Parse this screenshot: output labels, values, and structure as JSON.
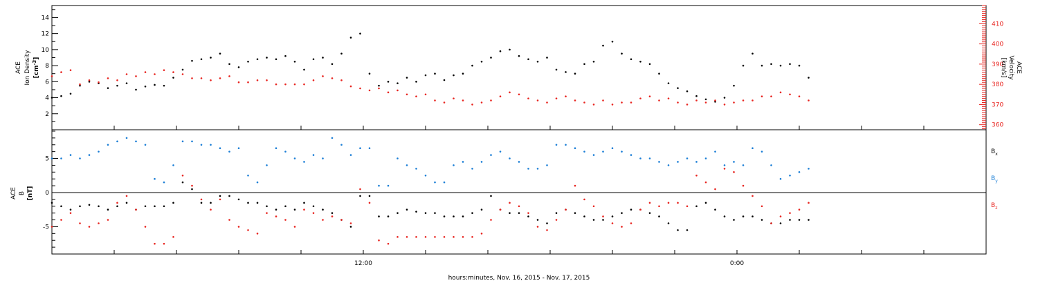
{
  "chart_data": [
    {
      "type": "scatter",
      "ylabel_left": [
        "ACE",
        "Ion Density",
        "[cm",
        "-3",
        "]"
      ],
      "ylabel_right": [
        "ACE",
        "Velocity",
        "[km/s]"
      ],
      "yticks_left": [
        2,
        4,
        6,
        8,
        10,
        12,
        14
      ],
      "ylim_left": [
        0,
        15.5
      ],
      "yticks_right": [
        360,
        370,
        380,
        390,
        400,
        410
      ],
      "ylim_right": [
        357.5,
        419
      ],
      "xlim_hours": [
        2,
        32
      ],
      "series": [
        {
          "name": "density",
          "axis": "left",
          "color": "#000000",
          "x_hours": [
            2.0,
            2.3,
            2.6,
            2.9,
            3.2,
            3.5,
            3.8,
            4.1,
            4.4,
            4.7,
            5.0,
            5.3,
            5.6,
            5.9,
            6.2,
            6.5,
            6.8,
            7.1,
            7.4,
            7.7,
            8.0,
            8.3,
            8.6,
            8.9,
            9.2,
            9.5,
            9.8,
            10.1,
            10.4,
            10.7,
            11.0,
            11.3,
            11.6,
            11.9,
            12.2,
            12.5,
            12.8,
            13.1,
            13.4,
            13.7,
            14.0,
            14.3,
            14.6,
            14.9,
            15.2,
            15.5,
            15.8,
            16.1,
            16.4,
            16.7,
            17.0,
            17.3,
            17.6,
            17.9,
            18.2,
            18.5,
            18.8,
            19.1,
            19.4,
            19.7,
            20.0,
            20.3,
            20.6,
            20.9,
            21.2,
            21.5,
            21.8,
            22.1,
            22.4,
            22.7,
            23.0,
            23.3,
            23.6,
            23.9,
            24.2,
            24.5,
            24.8,
            25.1,
            25.4,
            25.7,
            26.0,
            26.3
          ],
          "values": [
            4.0,
            4.2,
            4.5,
            5.5,
            6.0,
            5.8,
            5.2,
            5.5,
            5.8,
            5.0,
            5.4,
            5.6,
            5.5,
            6.5,
            7.5,
            8.6,
            8.8,
            9.0,
            9.5,
            8.2,
            7.8,
            8.5,
            8.8,
            9.0,
            8.8,
            9.2,
            8.5,
            7.5,
            8.8,
            9.0,
            8.2,
            9.5,
            11.5,
            12.0,
            7.0,
            5.5,
            6.0,
            5.8,
            6.5,
            6.0,
            6.8,
            7.0,
            6.2,
            6.8,
            7.0,
            8.0,
            8.5,
            9.0,
            9.8,
            10.0,
            9.2,
            8.8,
            8.5,
            9.0,
            7.5,
            7.2,
            7.0,
            8.2,
            8.5,
            10.5,
            11.0,
            9.5,
            8.8,
            8.5,
            8.2,
            7.0,
            5.8,
            5.2,
            4.8,
            4.2,
            3.8,
            3.5,
            4.0,
            5.5,
            8.0,
            9.5,
            8.0,
            8.2,
            8.0,
            8.2,
            8.0,
            6.5
          ]
        },
        {
          "name": "velocity",
          "axis": "right",
          "color": "#e8241f",
          "x_hours": [
            2.0,
            2.3,
            2.6,
            2.9,
            3.2,
            3.5,
            3.8,
            4.1,
            4.4,
            4.7,
            5.0,
            5.3,
            5.6,
            5.9,
            6.2,
            6.5,
            6.8,
            7.1,
            7.4,
            7.7,
            8.0,
            8.3,
            8.6,
            8.9,
            9.2,
            9.5,
            9.8,
            10.1,
            10.4,
            10.7,
            11.0,
            11.3,
            11.6,
            11.9,
            12.2,
            12.5,
            12.8,
            13.1,
            13.4,
            13.7,
            14.0,
            14.3,
            14.6,
            14.9,
            15.2,
            15.5,
            15.8,
            16.1,
            16.4,
            16.7,
            17.0,
            17.3,
            17.6,
            17.9,
            18.2,
            18.5,
            18.8,
            19.1,
            19.4,
            19.7,
            20.0,
            20.3,
            20.6,
            20.9,
            21.2,
            21.5,
            21.8,
            22.1,
            22.4,
            22.7,
            23.0,
            23.3,
            23.6,
            23.9,
            24.2,
            24.5,
            24.8,
            25.1,
            25.4,
            25.7,
            26.0,
            26.3
          ],
          "values": [
            384,
            386,
            387,
            380,
            382,
            381,
            383,
            382,
            385,
            384,
            386,
            385,
            387,
            386,
            385,
            383,
            383,
            382,
            383,
            384,
            381,
            381,
            382,
            382,
            380,
            380,
            380,
            380,
            382,
            384,
            383,
            382,
            379,
            378,
            377,
            378,
            376,
            377,
            375,
            374,
            375,
            372,
            371,
            373,
            372,
            370,
            371,
            372,
            374,
            376,
            375,
            373,
            372,
            371,
            373,
            374,
            372,
            371,
            370,
            372,
            370,
            371,
            371,
            373,
            374,
            372,
            373,
            371,
            370,
            372,
            371,
            372,
            370,
            371,
            372,
            372,
            374,
            374,
            376,
            375,
            374,
            372
          ]
        }
      ]
    },
    {
      "type": "scatter",
      "ylabel_left": [
        "ACE",
        "B",
        "[nT]"
      ],
      "yticks_left": [
        -5,
        0,
        5
      ],
      "ylim_left": [
        -9,
        9.2
      ],
      "xlim_hours": [
        2,
        32
      ],
      "xtick_hours": [
        4,
        6,
        8,
        10,
        12,
        14,
        16,
        18,
        20,
        22,
        24,
        26,
        28,
        30
      ],
      "xtick_labels": [
        {
          "hour": 12,
          "label": "12:00"
        },
        {
          "hour": 24,
          "label": "0:00"
        }
      ],
      "xlabel": "hours:minutes, Nov. 16, 2015 - Nov. 17, 2015",
      "legend": [
        {
          "name": "B",
          "sub": "x",
          "color": "#000000"
        },
        {
          "name": "B",
          "sub": "y",
          "color": "#1a7ed6"
        },
        {
          "name": "B",
          "sub": "z",
          "color": "#e8241f"
        }
      ],
      "series": [
        {
          "name": "Bx",
          "color": "#000000",
          "x_hours": [
            2.0,
            2.3,
            2.6,
            2.9,
            3.2,
            3.5,
            3.8,
            4.1,
            4.4,
            4.7,
            5.0,
            5.3,
            5.6,
            5.9,
            6.2,
            6.5,
            6.8,
            7.1,
            7.4,
            7.7,
            8.0,
            8.3,
            8.6,
            8.9,
            9.2,
            9.5,
            9.8,
            10.1,
            10.4,
            10.7,
            11.0,
            11.3,
            11.6,
            11.9,
            12.2,
            12.5,
            12.8,
            13.1,
            13.4,
            13.7,
            14.0,
            14.3,
            14.6,
            14.9,
            15.2,
            15.5,
            15.8,
            16.1,
            16.4,
            16.7,
            17.0,
            17.3,
            17.6,
            17.9,
            18.2,
            18.5,
            18.8,
            19.1,
            19.4,
            19.7,
            20.0,
            20.3,
            20.6,
            20.9,
            21.2,
            21.5,
            21.8,
            22.1,
            22.4,
            22.7,
            23.0,
            23.3,
            23.6,
            23.9,
            24.2,
            24.5,
            24.8,
            25.1,
            25.4,
            25.7,
            26.0,
            26.3
          ],
          "values": [
            -1.5,
            -2.0,
            -2.5,
            -2.0,
            -1.8,
            -2.0,
            -2.5,
            -2.0,
            -1.5,
            -2.5,
            -2.0,
            -2.0,
            -2.0,
            -1.5,
            1.5,
            0.5,
            -1.5,
            -1.5,
            -0.5,
            -0.5,
            -1.0,
            -1.5,
            -1.5,
            -2.0,
            -2.5,
            -2.0,
            -2.5,
            -1.5,
            -2.0,
            -2.5,
            -3.0,
            -4.0,
            -5.0,
            -0.5,
            -0.5,
            -3.5,
            -3.5,
            -3.0,
            -2.5,
            -2.8,
            -3.0,
            -3.0,
            -3.5,
            -3.5,
            -3.5,
            -3.0,
            -2.5,
            -0.5,
            -2.5,
            -3.0,
            -3.0,
            -3.5,
            -4.0,
            -4.5,
            -3.0,
            -2.5,
            -3.0,
            -3.5,
            -4.0,
            -4.0,
            -3.5,
            -3.0,
            -2.5,
            -2.5,
            -3.0,
            -3.5,
            -4.5,
            -5.5,
            -5.5,
            -2.0,
            -1.5,
            -2.5,
            -3.5,
            -4.0,
            -3.5,
            -3.5,
            -4.0,
            -4.5,
            -4.5,
            -4.0,
            -4.0,
            -4.0
          ]
        },
        {
          "name": "By",
          "color": "#1a7ed6",
          "x_hours": [
            2.0,
            2.3,
            2.6,
            2.9,
            3.2,
            3.5,
            3.8,
            4.1,
            4.4,
            4.7,
            5.0,
            5.3,
            5.6,
            5.9,
            6.2,
            6.5,
            6.8,
            7.1,
            7.4,
            7.7,
            8.0,
            8.3,
            8.6,
            8.9,
            9.2,
            9.5,
            9.8,
            10.1,
            10.4,
            10.7,
            11.0,
            11.3,
            11.6,
            11.9,
            12.2,
            12.5,
            12.8,
            13.1,
            13.4,
            13.7,
            14.0,
            14.3,
            14.6,
            14.9,
            15.2,
            15.5,
            15.8,
            16.1,
            16.4,
            16.7,
            17.0,
            17.3,
            17.6,
            17.9,
            18.2,
            18.5,
            18.8,
            19.1,
            19.4,
            19.7,
            20.0,
            20.3,
            20.6,
            20.9,
            21.2,
            21.5,
            21.8,
            22.1,
            22.4,
            22.7,
            23.0,
            23.3,
            23.6,
            23.9,
            24.2,
            24.5,
            24.8,
            25.1,
            25.4,
            25.7,
            26.0,
            26.3
          ],
          "values": [
            5.0,
            5.0,
            5.5,
            5.0,
            5.5,
            6.0,
            7.0,
            7.5,
            8.0,
            7.5,
            7.0,
            2.0,
            1.5,
            4.0,
            7.5,
            7.5,
            7.0,
            7.0,
            6.5,
            6.0,
            6.5,
            2.5,
            1.5,
            4.0,
            6.5,
            6.0,
            5.0,
            4.5,
            5.5,
            5.0,
            8.0,
            7.0,
            5.5,
            6.5,
            6.5,
            1.0,
            1.0,
            5.0,
            4.0,
            3.5,
            2.5,
            1.5,
            1.5,
            4.0,
            4.5,
            3.5,
            4.5,
            5.5,
            6.0,
            5.0,
            4.5,
            3.5,
            3.5,
            4.0,
            7.0,
            7.0,
            6.5,
            6.0,
            5.5,
            6.0,
            6.5,
            6.0,
            5.5,
            5.0,
            5.0,
            4.5,
            4.0,
            4.5,
            5.0,
            4.5,
            5.0,
            6.0,
            4.0,
            4.5,
            4.0,
            6.5,
            6.0,
            4.0,
            2.0,
            2.5,
            3.0,
            3.5
          ]
        },
        {
          "name": "Bz",
          "color": "#e8241f",
          "x_hours": [
            2.0,
            2.3,
            2.6,
            2.9,
            3.2,
            3.5,
            3.8,
            4.1,
            4.4,
            4.7,
            5.0,
            5.3,
            5.6,
            5.9,
            6.2,
            6.5,
            6.8,
            7.1,
            7.4,
            7.7,
            8.0,
            8.3,
            8.6,
            8.9,
            9.2,
            9.5,
            9.8,
            10.1,
            10.4,
            10.7,
            11.0,
            11.3,
            11.6,
            11.9,
            12.2,
            12.5,
            12.8,
            13.1,
            13.4,
            13.7,
            14.0,
            14.3,
            14.6,
            14.9,
            15.2,
            15.5,
            15.8,
            16.1,
            16.4,
            16.7,
            17.0,
            17.3,
            17.6,
            17.9,
            18.2,
            18.5,
            18.8,
            19.1,
            19.4,
            19.7,
            20.0,
            20.3,
            20.6,
            20.9,
            21.2,
            21.5,
            21.8,
            22.1,
            22.4,
            22.7,
            23.0,
            23.3,
            23.6,
            23.9,
            24.2,
            24.5,
            24.8,
            25.1,
            25.4,
            25.7,
            26.0,
            26.3
          ],
          "values": [
            -5.0,
            -4.0,
            -3.0,
            -4.5,
            -5.0,
            -4.5,
            -4.0,
            -1.5,
            -0.5,
            -2.5,
            -5.0,
            -7.5,
            -7.5,
            -6.5,
            2.5,
            1.0,
            -1.0,
            -2.5,
            -1.0,
            -4.0,
            -5.0,
            -5.5,
            -6.0,
            -3.0,
            -3.5,
            -4.0,
            -5.0,
            -2.5,
            -3.0,
            -4.0,
            -3.5,
            -4.0,
            -4.5,
            0.5,
            -1.5,
            -7.0,
            -7.5,
            -6.5,
            -6.5,
            -6.5,
            -6.5,
            -6.5,
            -6.5,
            -6.5,
            -6.5,
            -6.5,
            -6.0,
            -4.0,
            -2.5,
            -1.5,
            -2.0,
            -3.0,
            -5.0,
            -5.5,
            -4.0,
            -2.5,
            1.0,
            -1.0,
            -2.0,
            -3.5,
            -4.5,
            -5.0,
            -4.5,
            -2.5,
            -1.5,
            -2.0,
            -1.5,
            -1.5,
            -2.0,
            2.5,
            1.5,
            0.5,
            3.5,
            3.0,
            1.0,
            -0.5,
            -2.0,
            -4.5,
            -3.5,
            -3.0,
            -2.5,
            -1.5
          ]
        }
      ]
    }
  ]
}
